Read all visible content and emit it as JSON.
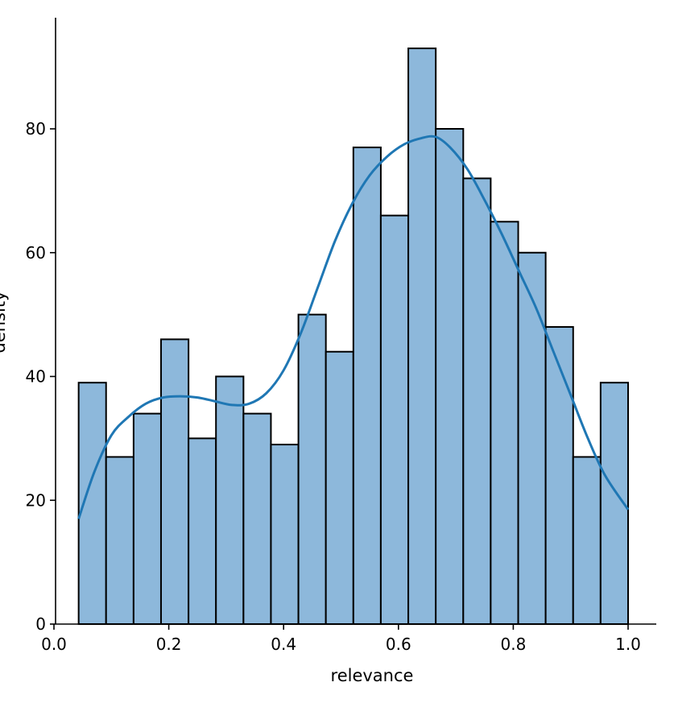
{
  "chart_data": {
    "type": "bar",
    "title": "",
    "xlabel": "relevance",
    "ylabel": "density",
    "xlim": [
      0.0,
      1.0
    ],
    "ylim": [
      0,
      95
    ],
    "xticks": [
      0.0,
      0.2,
      0.4,
      0.6,
      0.8,
      1.0
    ],
    "xtick_labels": [
      "0.0",
      "0.2",
      "0.4",
      "0.6",
      "0.8",
      "1.0"
    ],
    "yticks": [
      0,
      20,
      40,
      60,
      80
    ],
    "ytick_labels": [
      "0",
      "20",
      "40",
      "60",
      "80"
    ],
    "grid": false,
    "bin_edges": [
      0.043,
      0.0908,
      0.1387,
      0.1865,
      0.2344,
      0.2822,
      0.3301,
      0.3779,
      0.4258,
      0.4736,
      0.5215,
      0.5693,
      0.6172,
      0.665,
      0.7129,
      0.7607,
      0.8086,
      0.8564,
      0.9043,
      0.9521,
      1.0
    ],
    "values": [
      39,
      27,
      34,
      46,
      30,
      40,
      34,
      29,
      50,
      44,
      77,
      66,
      93,
      80,
      72,
      65,
      60,
      48,
      27,
      39
    ],
    "kde": {
      "x": [
        0.043,
        0.07,
        0.1,
        0.13,
        0.16,
        0.19,
        0.22,
        0.25,
        0.28,
        0.31,
        0.34,
        0.37,
        0.4,
        0.43,
        0.46,
        0.49,
        0.52,
        0.55,
        0.58,
        0.61,
        0.64,
        0.665,
        0.69,
        0.72,
        0.75,
        0.78,
        0.81,
        0.84,
        0.87,
        0.9,
        0.93,
        0.96,
        1.0
      ],
      "y": [
        17,
        24.5,
        30.5,
        33.5,
        35.6,
        36.6,
        36.8,
        36.6,
        36,
        35.4,
        35.6,
        37.3,
        41,
        47,
        54.5,
        62,
        68,
        72.5,
        75.5,
        77.5,
        78.5,
        78.7,
        77,
        73.5,
        68.5,
        63,
        57,
        51,
        44,
        37,
        30,
        24,
        18.5
      ]
    },
    "colors": {
      "bar_fill": "#8db8db",
      "bar_edge": "#000000",
      "kde_line": "#1f77b4"
    }
  }
}
